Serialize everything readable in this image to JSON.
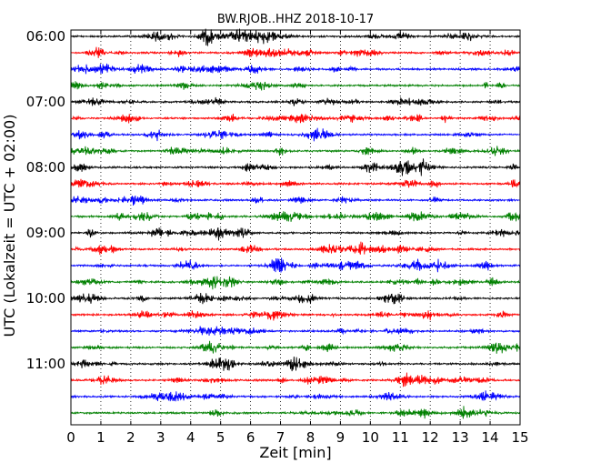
{
  "chart_data": {
    "type": "line",
    "title": "BW.RJOB..HHZ 2018-10-17",
    "xlabel": "Zeit  [min]",
    "ylabel": "UTC (Lokalzeit = UTC + 02:00)",
    "xlim": [
      0,
      15
    ],
    "x_ticks": [
      "0",
      "1",
      "2",
      "3",
      "4",
      "5",
      "6",
      "7",
      "8",
      "9",
      "10",
      "11",
      "12",
      "13",
      "14",
      "15"
    ],
    "y_ticks": [
      "06:00",
      "07:00",
      "08:00",
      "09:00",
      "10:00",
      "11:00"
    ],
    "grid": "vertical dotted",
    "trace_start_utc": "06:00",
    "trace_interval_minutes": 15,
    "trace_count": 24,
    "trace_colors": [
      "#000000",
      "#ff0000",
      "#0000ff",
      "#008000"
    ],
    "series": [
      {
        "start": "06:00",
        "color": "#000000"
      },
      {
        "start": "06:15",
        "color": "#ff0000"
      },
      {
        "start": "06:30",
        "color": "#0000ff"
      },
      {
        "start": "06:45",
        "color": "#008000"
      },
      {
        "start": "07:00",
        "color": "#000000"
      },
      {
        "start": "07:15",
        "color": "#ff0000"
      },
      {
        "start": "07:30",
        "color": "#0000ff"
      },
      {
        "start": "07:45",
        "color": "#008000"
      },
      {
        "start": "08:00",
        "color": "#000000"
      },
      {
        "start": "08:15",
        "color": "#ff0000"
      },
      {
        "start": "08:30",
        "color": "#0000ff"
      },
      {
        "start": "08:45",
        "color": "#008000"
      },
      {
        "start": "09:00",
        "color": "#000000"
      },
      {
        "start": "09:15",
        "color": "#ff0000"
      },
      {
        "start": "09:30",
        "color": "#0000ff"
      },
      {
        "start": "09:45",
        "color": "#008000"
      },
      {
        "start": "10:00",
        "color": "#000000"
      },
      {
        "start": "10:15",
        "color": "#ff0000"
      },
      {
        "start": "10:30",
        "color": "#0000ff"
      },
      {
        "start": "10:45",
        "color": "#008000"
      },
      {
        "start": "11:00",
        "color": "#000000"
      },
      {
        "start": "11:15",
        "color": "#ff0000"
      },
      {
        "start": "11:30",
        "color": "#0000ff"
      },
      {
        "start": "11:45",
        "color": "#008000"
      }
    ]
  }
}
